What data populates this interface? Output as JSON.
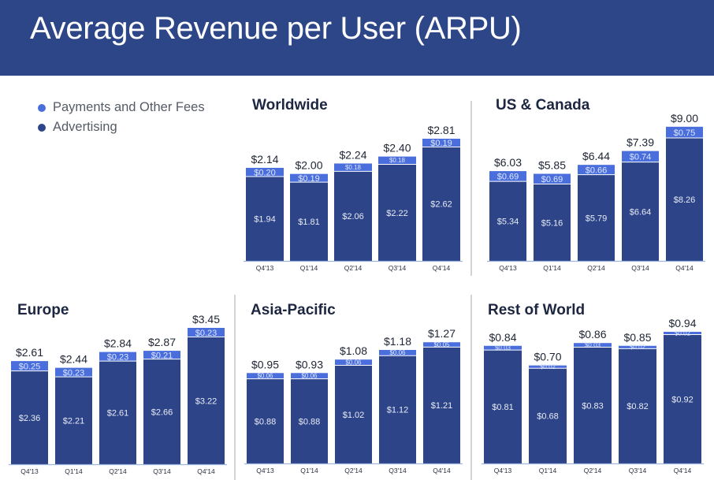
{
  "header": {
    "title": "Average Revenue per User (ARPU)"
  },
  "colors": {
    "header_bg": "#2d4688",
    "advertising": "#2d4488",
    "payments": "#4a6fdc",
    "axis": "#9fb4e0"
  },
  "legend": {
    "items": [
      {
        "label": "Payments and Other Fees",
        "color": "#4a6fdc"
      },
      {
        "label": "Advertising",
        "color": "#2d4488"
      }
    ]
  },
  "chart_data": [
    {
      "type": "bar",
      "stacked": true,
      "title": "Worldwide",
      "categories": [
        "Q4'13",
        "Q1'14",
        "Q2'14",
        "Q3'14",
        "Q4'14"
      ],
      "series": [
        {
          "name": "Advertising",
          "values": [
            1.94,
            1.81,
            2.06,
            2.22,
            2.62
          ],
          "labels": [
            "$1.94",
            "$1.81",
            "$2.06",
            "$2.22",
            "$2.62"
          ]
        },
        {
          "name": "Payments and Other Fees",
          "values": [
            0.2,
            0.19,
            0.18,
            0.18,
            0.19
          ],
          "labels": [
            "$0.20",
            "$0.19",
            "$0.18",
            "$0.18",
            "$0.19"
          ]
        }
      ],
      "totals": [
        "$2.14",
        "$2.00",
        "$2.24",
        "$2.40",
        "$2.81"
      ],
      "xlabel": "",
      "ylabel": ""
    },
    {
      "type": "bar",
      "stacked": true,
      "title": "US & Canada",
      "categories": [
        "Q4'13",
        "Q1'14",
        "Q2'14",
        "Q3'14",
        "Q4'14"
      ],
      "series": [
        {
          "name": "Advertising",
          "values": [
            5.34,
            5.16,
            5.79,
            6.64,
            8.26
          ],
          "labels": [
            "$5.34",
            "$5.16",
            "$5.79",
            "$6.64",
            "$8.26"
          ]
        },
        {
          "name": "Payments and Other Fees",
          "values": [
            0.69,
            0.69,
            0.66,
            0.74,
            0.75
          ],
          "labels": [
            "$0.69",
            "$0.69",
            "$0.66",
            "$0.74",
            "$0.75"
          ]
        }
      ],
      "totals": [
        "$6.03",
        "$5.85",
        "$6.44",
        "$7.39",
        "$9.00"
      ],
      "xlabel": "",
      "ylabel": ""
    },
    {
      "type": "bar",
      "stacked": true,
      "title": "Europe",
      "categories": [
        "Q4'13",
        "Q1'14",
        "Q2'14",
        "Q3'14",
        "Q4'14"
      ],
      "series": [
        {
          "name": "Advertising",
          "values": [
            2.36,
            2.21,
            2.61,
            2.66,
            3.22
          ],
          "labels": [
            "$2.36",
            "$2.21",
            "$2.61",
            "$2.66",
            "$3.22"
          ]
        },
        {
          "name": "Payments and Other Fees",
          "values": [
            0.25,
            0.23,
            0.23,
            0.21,
            0.23
          ],
          "labels": [
            "$0.25",
            "$0.23",
            "$0.23",
            "$0.21",
            "$0.23"
          ]
        }
      ],
      "totals": [
        "$2.61",
        "$2.44",
        "$2.84",
        "$2.87",
        "$3.45"
      ],
      "xlabel": "",
      "ylabel": ""
    },
    {
      "type": "bar",
      "stacked": true,
      "title": "Asia-Pacific",
      "categories": [
        "Q4'13",
        "Q1'14",
        "Q2'14",
        "Q3'14",
        "Q4'14"
      ],
      "series": [
        {
          "name": "Advertising",
          "values": [
            0.88,
            0.88,
            1.02,
            1.12,
            1.21
          ],
          "labels": [
            "$0.88",
            "$0.88",
            "$1.02",
            "$1.12",
            "$1.21"
          ]
        },
        {
          "name": "Payments and Other Fees",
          "values": [
            0.06,
            0.06,
            0.06,
            0.06,
            0.05
          ],
          "labels": [
            "$0.06",
            "$0.06",
            "$0.06",
            "$0.06",
            "$0.05"
          ]
        }
      ],
      "totals": [
        "$0.95",
        "$0.93",
        "$1.08",
        "$1.18",
        "$1.27"
      ],
      "xlabel": "",
      "ylabel": ""
    },
    {
      "type": "bar",
      "stacked": true,
      "title": "Rest of World",
      "categories": [
        "Q4'13",
        "Q1'14",
        "Q2'14",
        "Q3'14",
        "Q4'14"
      ],
      "series": [
        {
          "name": "Advertising",
          "values": [
            0.81,
            0.68,
            0.83,
            0.82,
            0.92
          ],
          "labels": [
            "$0.81",
            "$0.68",
            "$0.83",
            "$0.82",
            "$0.92"
          ]
        },
        {
          "name": "Payments and Other Fees",
          "values": [
            0.03,
            0.02,
            0.03,
            0.02,
            0.02
          ],
          "labels": [
            "$0.03",
            "$0.02",
            "$0.03",
            "$0.02",
            "$0.02"
          ]
        }
      ],
      "totals": [
        "$0.84",
        "$0.70",
        "$0.86",
        "$0.85",
        "$0.94"
      ],
      "xlabel": "",
      "ylabel": ""
    }
  ]
}
